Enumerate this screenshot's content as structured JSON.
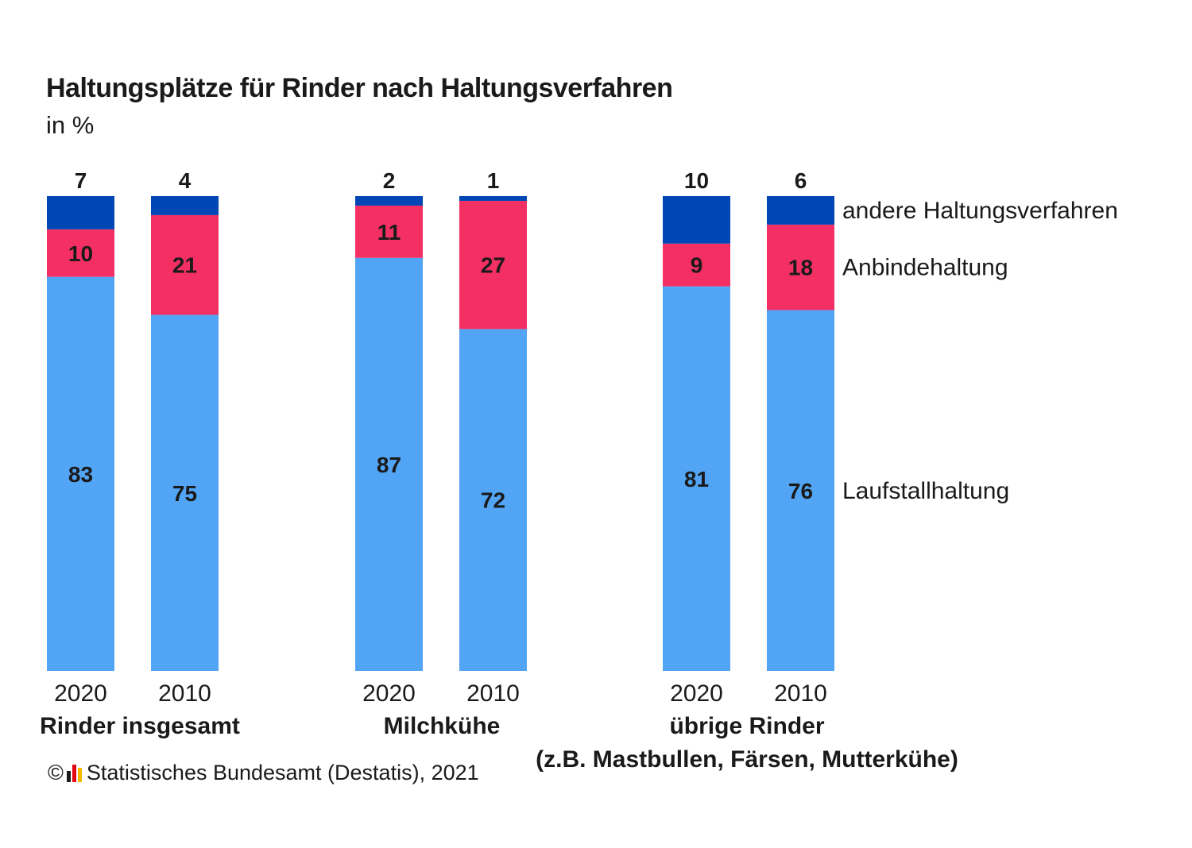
{
  "title": "Haltungsplätze für Rinder nach Haltungsverfahren",
  "subtitle": "in %",
  "source": {
    "copyright": "©",
    "text": "Statistisches Bundesamt (Destatis), 2021"
  },
  "colors": {
    "laufstall": "#52a5f5",
    "anbinde": "#f42f64",
    "andere": "#0046b4",
    "logo": [
      "#1a1a1a",
      "#e30613",
      "#f5b800"
    ]
  },
  "chart_data": {
    "type": "bar",
    "stacked": true,
    "unit": "%",
    "groups": [
      {
        "label": "Rinder insgesamt",
        "label2": "",
        "years": [
          "2020",
          "2010"
        ]
      },
      {
        "label": "Milchkühe",
        "label2": "",
        "years": [
          "2020",
          "2010"
        ]
      },
      {
        "label": "übrige Rinder",
        "label2": "(z.B. Mastbullen, Färsen, Mutterkühe)",
        "years": [
          "2020",
          "2010"
        ]
      }
    ],
    "series": [
      {
        "name": "Laufstallhaltung",
        "color": "#52a5f5",
        "values": [
          83,
          75,
          87,
          72,
          81,
          76
        ]
      },
      {
        "name": "Anbindehaltung",
        "color": "#f42f64",
        "values": [
          10,
          21,
          11,
          27,
          9,
          18
        ]
      },
      {
        "name": "andere Haltungsverfahren",
        "color": "#0046b4",
        "values": [
          7,
          4,
          2,
          1,
          10,
          6
        ]
      }
    ],
    "ylim": [
      0,
      100
    ],
    "grid": false,
    "legend": "right"
  }
}
